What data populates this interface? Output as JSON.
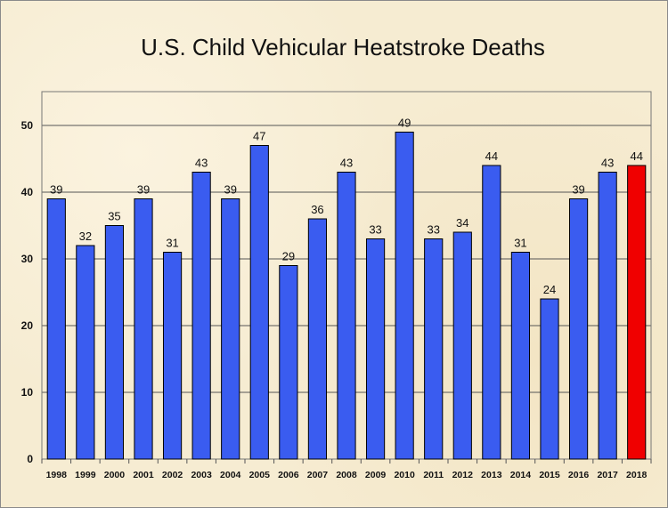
{
  "chart_data": {
    "type": "bar",
    "title": "U.S. Child Vehicular Heatstroke Deaths",
    "xlabel": "",
    "ylabel": "",
    "ylim": [
      0,
      50
    ],
    "yticks": [
      0,
      10,
      20,
      30,
      40,
      50
    ],
    "grid": true,
    "categories": [
      "1998",
      "1999",
      "2000",
      "2001",
      "2002",
      "2003",
      "2004",
      "2005",
      "2006",
      "2007",
      "2008",
      "2009",
      "2010",
      "2011",
      "2012",
      "2013",
      "2014",
      "2015",
      "2016",
      "2017",
      "2018"
    ],
    "values": [
      39,
      32,
      35,
      39,
      31,
      43,
      39,
      47,
      29,
      36,
      43,
      33,
      49,
      33,
      34,
      44,
      31,
      24,
      39,
      43,
      44
    ],
    "colors": {
      "default": "#3a5cf0",
      "highlight": "#f00000",
      "highlight_category": "2018"
    }
  }
}
